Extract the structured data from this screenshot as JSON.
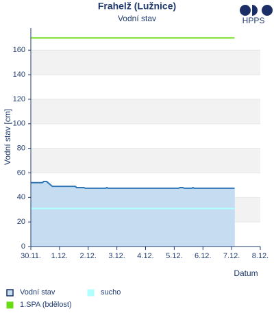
{
  "logo": "HPPS",
  "chart_data": {
    "type": "line",
    "title": "Frahelž (Lužnice)",
    "subtitle": "Vodní stav",
    "ylabel": "Vodní stav [cm]",
    "xlabel": "Datum",
    "xlim": [
      0,
      8
    ],
    "ylim": [
      0,
      178
    ],
    "xticks": [
      {
        "value": 0,
        "label": "30.11."
      },
      {
        "value": 1,
        "label": "1.12."
      },
      {
        "value": 2,
        "label": "2.12."
      },
      {
        "value": 3,
        "label": "3.12."
      },
      {
        "value": 4,
        "label": "4.12."
      },
      {
        "value": 5,
        "label": "5.12."
      },
      {
        "value": 6,
        "label": "6.12."
      },
      {
        "value": 7,
        "label": "7.12."
      },
      {
        "value": 8,
        "label": "8.12."
      }
    ],
    "yticks": [
      0,
      20,
      40,
      60,
      80,
      100,
      120,
      140,
      160
    ],
    "bands": true,
    "series": [
      {
        "name": "Vodní stav",
        "color": "#2e75b6",
        "fill": "#c6dcf1",
        "area": true,
        "x": [
          0,
          0.4,
          0.45,
          0.55,
          0.6,
          0.75,
          1.55,
          1.6,
          1.85,
          1.9,
          2.6,
          2.65,
          2.7,
          5.15,
          5.2,
          5.3,
          5.35,
          5.6,
          5.65,
          5.7,
          7.1
        ],
        "values": [
          52,
          52,
          53,
          53,
          52,
          49,
          49,
          48,
          48,
          47.5,
          47.5,
          48,
          47.5,
          47.5,
          48,
          48,
          47.5,
          47.5,
          48,
          47.5,
          47.5
        ]
      },
      {
        "name": "sucho",
        "color": "#b0ffff",
        "area": false,
        "x": [
          0,
          7.1
        ],
        "values": [
          31,
          31
        ]
      },
      {
        "name": "1.SPA (bdělost)",
        "color": "#66dd11",
        "area": false,
        "x": [
          0,
          7.1
        ],
        "values": [
          170,
          170
        ]
      }
    ]
  }
}
